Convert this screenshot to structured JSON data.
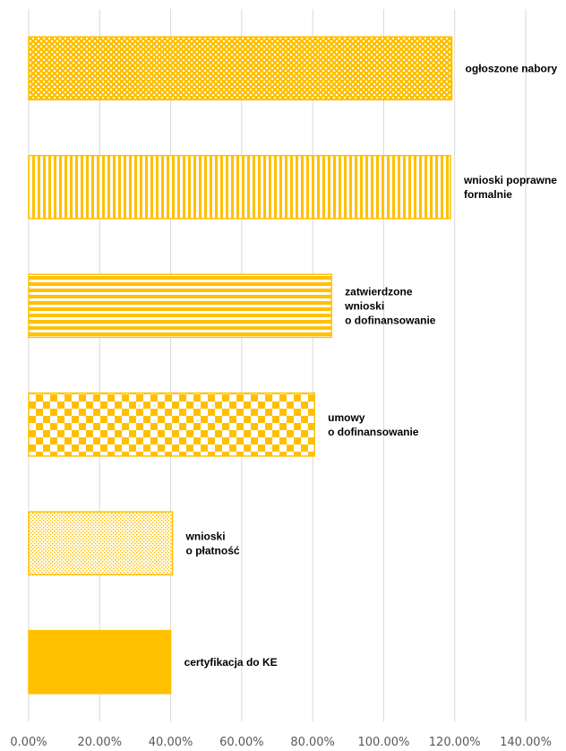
{
  "chart_data": {
    "type": "bar",
    "orientation": "horizontal",
    "title": "",
    "xlabel": "",
    "ylabel": "",
    "xlim": [
      0,
      140
    ],
    "x_ticks": [
      "0.00%",
      "20.00%",
      "40.00%",
      "60.00%",
      "80.00%",
      "100.00%",
      "120.00%",
      "140.00%"
    ],
    "grid": "vertical",
    "legend": "none",
    "categories": [
      [
        "ogłoszone nabory"
      ],
      [
        "wnioski poprawne",
        "formalnie"
      ],
      [
        "zatwierdzone",
        "wnioski",
        "o dofinansowanie"
      ],
      [
        "umowy",
        "o dofinansowanie"
      ],
      [
        "wnioski",
        "o płatność"
      ],
      [
        "certyfikacja do KE"
      ]
    ],
    "values": [
      119.2,
      118.8,
      85.3,
      80.5,
      40.5,
      40.0
    ],
    "patterns": [
      "fine-checker",
      "vertical-stripes",
      "horizontal-stripes",
      "checker",
      "dots",
      "solid"
    ],
    "color": "#FFC000",
    "grid_color": "#D9D9D9"
  }
}
